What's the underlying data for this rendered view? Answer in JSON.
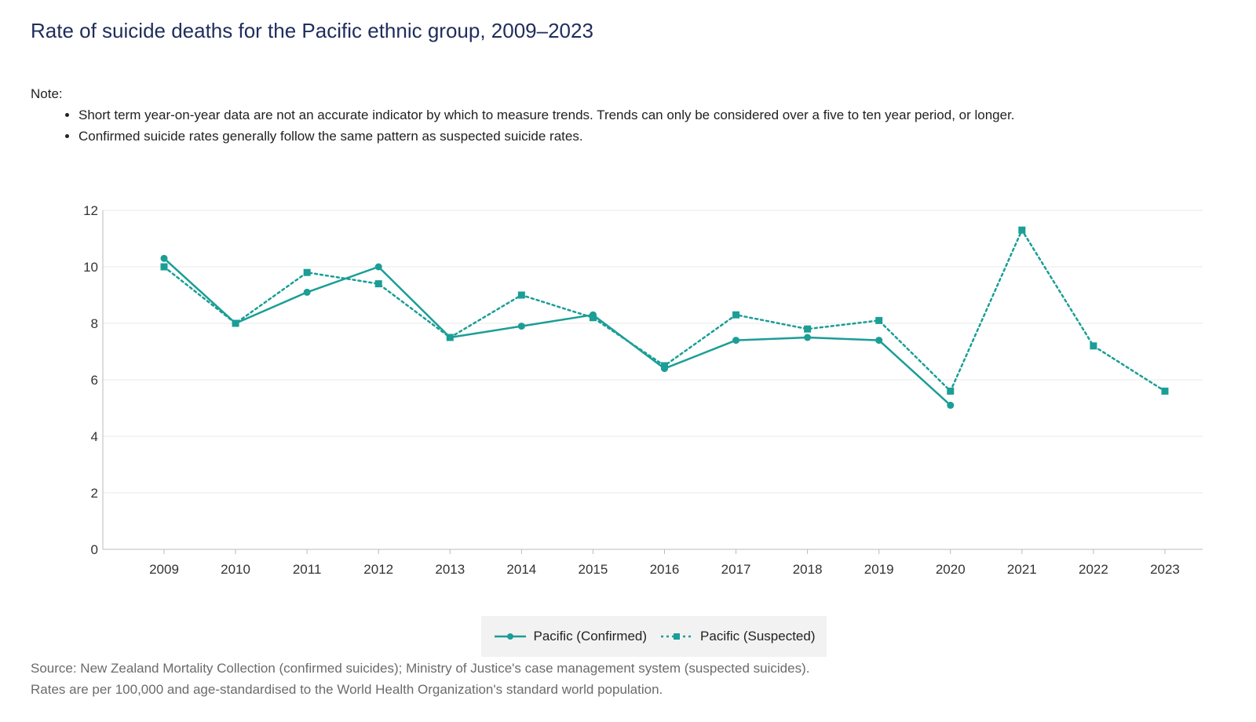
{
  "page": {
    "title": "Rate of suicide deaths for the Pacific ethnic group, 2009–2023",
    "note_label": "Note:",
    "notes": [
      "Short term year-on-year data are not an accurate indicator by which to measure trends. Trends can only be considered over a five to ten year period, or longer.",
      "Confirmed suicide rates generally follow the same pattern as suspected suicide rates."
    ],
    "source_lines": [
      "Source: New Zealand Mortality Collection (confirmed suicides); Ministry of Justice's case management system (suspected suicides).",
      "Rates are per 100,000 and age-standardised to the World Health Organization's standard world population."
    ]
  },
  "colors": {
    "series": "#1a9e96",
    "grid": "#e8e8e8",
    "axis": "#bbbbbb",
    "title": "#1f2d5c"
  },
  "chart_data": {
    "type": "line",
    "title": "Rate of suicide deaths for the Pacific ethnic group, 2009–2023",
    "xlabel": "",
    "ylabel": "",
    "ylim": [
      0,
      12
    ],
    "y_ticks": [
      "0",
      "2",
      "4",
      "6",
      "8",
      "10",
      "12"
    ],
    "categories": [
      "2009",
      "2010",
      "2011",
      "2012",
      "2013",
      "2014",
      "2015",
      "2016",
      "2017",
      "2018",
      "2019",
      "2020",
      "2021",
      "2022",
      "2023"
    ],
    "grid": true,
    "legend_position": "bottom-center",
    "series": [
      {
        "name": "Pacific (Confirmed)",
        "style": "solid",
        "marker": "circle",
        "values": [
          10.3,
          8.0,
          9.1,
          10.0,
          7.5,
          7.9,
          8.3,
          6.4,
          7.4,
          7.5,
          7.4,
          5.1,
          null,
          null,
          null
        ]
      },
      {
        "name": "Pacific (Suspected)",
        "style": "dotted",
        "marker": "square",
        "values": [
          10.0,
          8.0,
          9.8,
          9.4,
          7.5,
          9.0,
          8.2,
          6.5,
          8.3,
          7.8,
          8.1,
          5.6,
          11.3,
          7.2,
          5.6
        ]
      }
    ]
  }
}
